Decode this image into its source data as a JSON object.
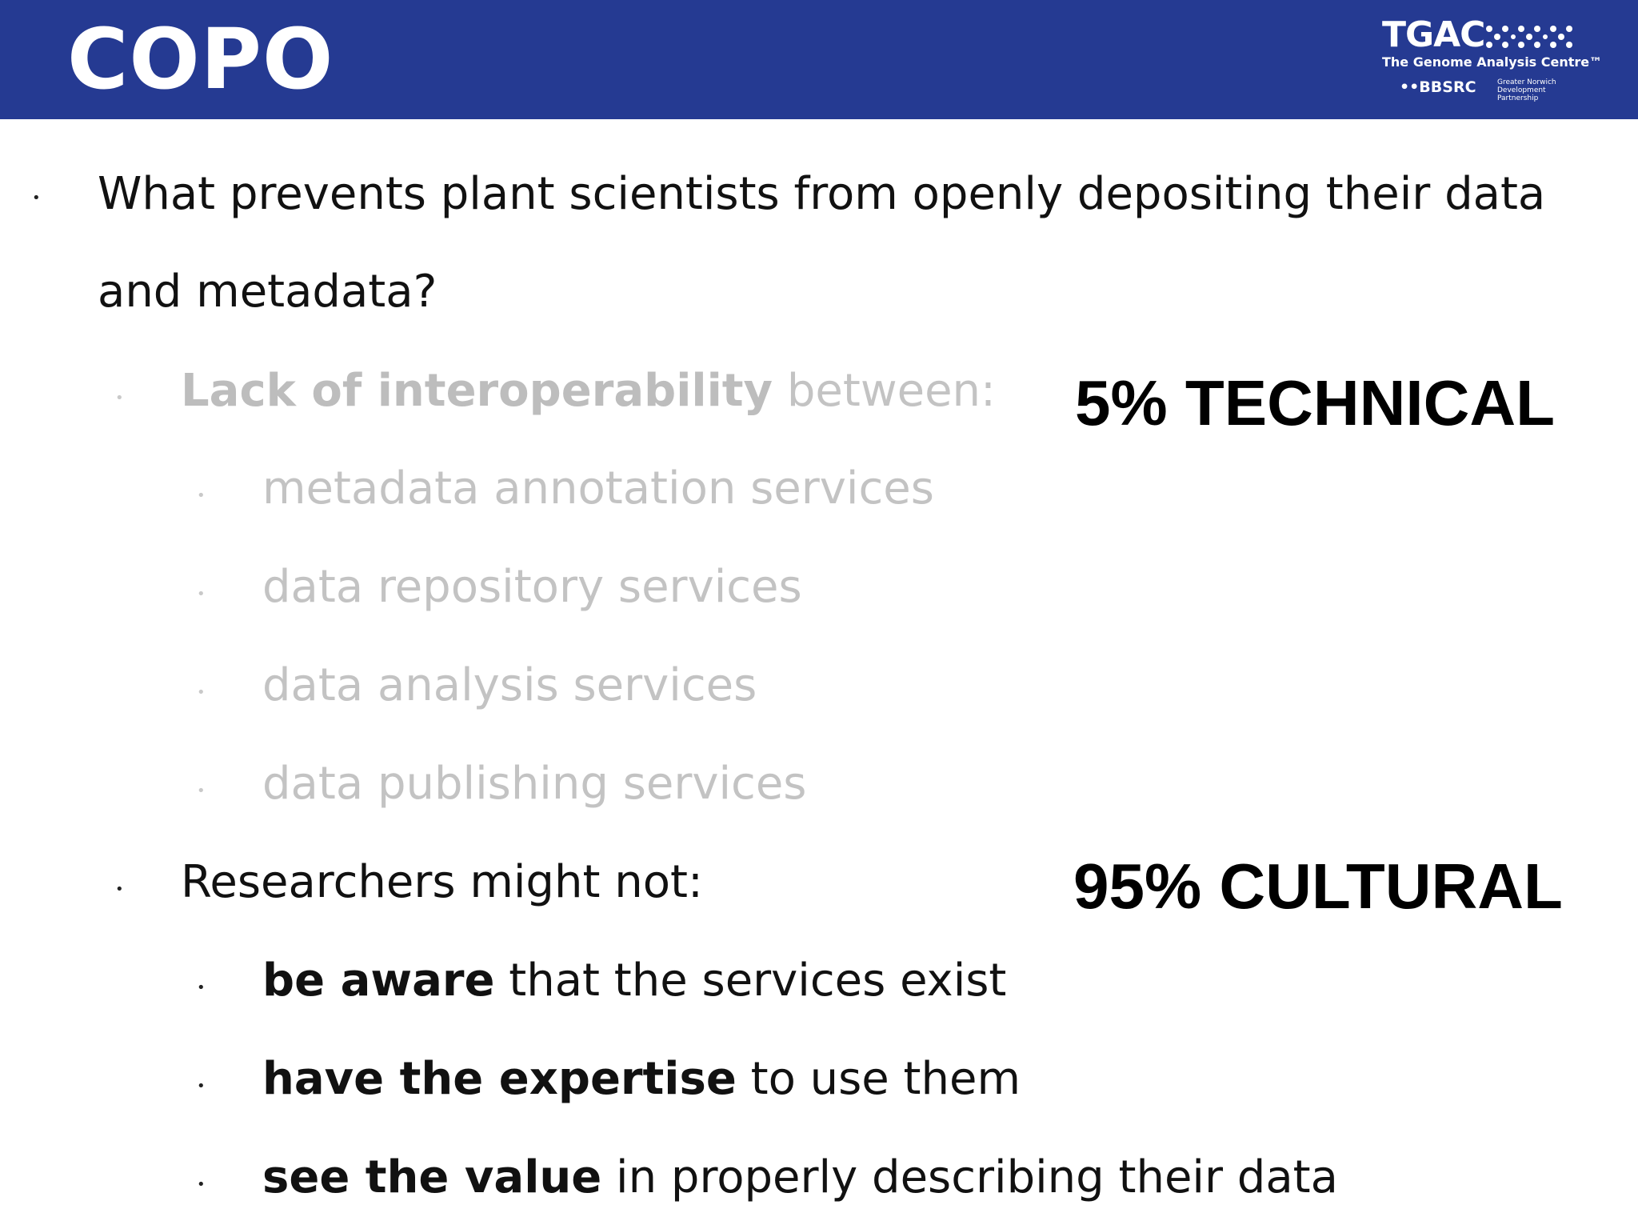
{
  "header": {
    "title": "COPO",
    "background_color": "#253A92"
  },
  "logo": {
    "name": "TGAC",
    "subtitle": "The Genome Analysis Centre™",
    "bbsrc": "BBSRC",
    "partner_lines": [
      "Greater Norwich",
      "Development",
      "Partnership"
    ]
  },
  "question": {
    "line1": "What prevents plant scientists from openly depositing their data",
    "line2": "and metadata?"
  },
  "technical": {
    "lead_bold": "Lack of interoperability",
    "lead_rest": " between:",
    "items": [
      "metadata annotation services",
      "data repository services",
      "data analysis services",
      "data publishing services"
    ],
    "callout": "5% TECHNICAL"
  },
  "cultural": {
    "lead": "Researchers might not:",
    "items": [
      {
        "bold": "be aware",
        "rest": " that the services exist"
      },
      {
        "bold": "have the expertise",
        "rest": " to use them"
      },
      {
        "bold": "see the value",
        "rest": " in properly describing their data"
      }
    ],
    "callout": "95% CULTURAL"
  }
}
